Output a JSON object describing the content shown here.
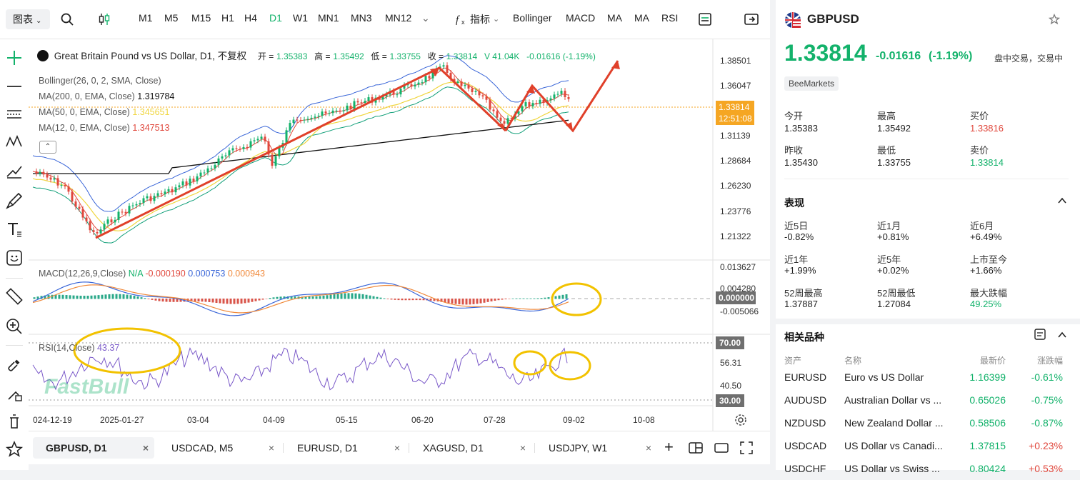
{
  "toolbar": {
    "chart_type": "图表",
    "timeframes": [
      "M1",
      "M5",
      "M15",
      "H1",
      "H4",
      "D1",
      "W1",
      "MN1",
      "MN3",
      "MN12"
    ],
    "active_timeframe": "D1",
    "indicators_label": "指标",
    "indicator_buttons": [
      "Bollinger",
      "MACD",
      "MA",
      "MA",
      "RSI"
    ]
  },
  "legend": {
    "title": "Great Britain Pound vs US Dollar, D1, 不复权",
    "open_label": "开 =",
    "open": "1.35383",
    "high_label": "高 =",
    "high": "1.35492",
    "low_label": "低 =",
    "low": "1.33755",
    "close_label": "收 =",
    "close": "1.33814",
    "volume": "V 41.04K",
    "change": "-0.01616 (-1.19%)",
    "bollinger": "Bollinger(26, 0, 2, SMA, Close)",
    "ma200": "MA(200, 0, EMA, Close)",
    "ma200_val": "1.319784",
    "ma50": "MA(50, 0, EMA, Close)",
    "ma50_val": "1.345651",
    "ma12": "MA(12, 0, EMA, Close)",
    "ma12_val": "1.347513",
    "macd": "MACD(12,26,9,Close)",
    "macd_na": "N/A",
    "macd_v1": "-0.000190",
    "macd_v2": "0.000753",
    "macd_v3": "0.000943",
    "rsi": "RSI(14,Close)",
    "rsi_val": "43.37"
  },
  "price_axis": [
    "1.38501",
    "1.36047",
    "1.31139",
    "1.28684",
    "1.26230",
    "1.23776",
    "1.21322"
  ],
  "price_tag": {
    "price": "1.33814",
    "time": "12:51:08"
  },
  "macd_axis": [
    "0.013627",
    "0.004280",
    "0.000000",
    "-0.005066"
  ],
  "rsi_axis": [
    "70.00",
    "56.31",
    "40.50",
    "30.00"
  ],
  "date_axis": [
    "024-12-19",
    "2025-01-27",
    "03-04",
    "04-09",
    "05-15",
    "06-20",
    "07-28",
    "09-02",
    "10-08"
  ],
  "watermark": "FastBull",
  "tabs": [
    {
      "label": "GBPUSD, D1",
      "close": "×"
    },
    {
      "label": "USDCAD, M5",
      "close": "×"
    },
    {
      "label": "EURUSD, D1",
      "close": "×"
    },
    {
      "label": "XAGUSD, D1",
      "close": "×"
    },
    {
      "label": "USDJPY, W1",
      "close": "×"
    }
  ],
  "add_tab": "+",
  "panel": {
    "symbol": "GBPUSD",
    "price": "1.33814",
    "change": "-0.01616",
    "change_pct": "(-1.19%)",
    "status": "盘中交易，交易中",
    "broker": "BeeMarkets",
    "stats": [
      {
        "label": "今开",
        "value": "1.35383",
        "color": ""
      },
      {
        "label": "最高",
        "value": "1.35492",
        "color": ""
      },
      {
        "label": "买价",
        "value": "1.33816",
        "color": "red"
      },
      {
        "label": "昨收",
        "value": "1.35430",
        "color": ""
      },
      {
        "label": "最低",
        "value": "1.33755",
        "color": ""
      },
      {
        "label": "卖价",
        "value": "1.33814",
        "color": "green"
      }
    ],
    "perf_title": "表现",
    "perf": [
      {
        "label": "近5日",
        "value": "-0.82%",
        "color": ""
      },
      {
        "label": "近1月",
        "value": "+0.81%",
        "color": ""
      },
      {
        "label": "近6月",
        "value": "+6.49%",
        "color": ""
      },
      {
        "label": "近1年",
        "value": "+1.99%",
        "color": ""
      },
      {
        "label": "近5年",
        "value": "+0.02%",
        "color": ""
      },
      {
        "label": "上市至今",
        "value": "+1.66%",
        "color": ""
      },
      {
        "label": "52周最高",
        "value": "1.37887",
        "color": ""
      },
      {
        "label": "52周最低",
        "value": "1.27084",
        "color": ""
      },
      {
        "label": "最大跌幅",
        "value": "49.25%",
        "color": "green"
      }
    ],
    "related_title": "相关品种",
    "related_headers": [
      "资产",
      "名称",
      "最新价",
      "涨跌幅"
    ],
    "related": [
      {
        "asset": "EURUSD",
        "name": "Euro vs US Dollar",
        "price": "1.16399",
        "chg": "-0.61%",
        "up": false
      },
      {
        "asset": "AUDUSD",
        "name": "Australian Dollar vs ...",
        "price": "0.65026",
        "chg": "-0.75%",
        "up": false
      },
      {
        "asset": "NZDUSD",
        "name": "New Zealand Dollar ...",
        "price": "0.58506",
        "chg": "-0.87%",
        "up": false
      },
      {
        "asset": "USDCAD",
        "name": "US Dollar vs Canadi...",
        "price": "1.37815",
        "chg": "+0.23%",
        "up": true
      },
      {
        "asset": "USDCHF",
        "name": "US Dollar vs Swiss ...",
        "price": "0.80424",
        "chg": "+0.53%",
        "up": true
      }
    ]
  },
  "colors": {
    "green": "#13b26b",
    "red": "#e0483d",
    "accent": "#f5a623",
    "bb": "#3a66d8",
    "ma50": "#f0d640",
    "ma12": "#e0483d",
    "ma200": "#111111",
    "rsi": "#7b5ac9",
    "macd_fast": "#3a66d8",
    "macd_slow": "#f08a3c",
    "annot": "#e0402a",
    "circle": "#f2c200"
  }
}
